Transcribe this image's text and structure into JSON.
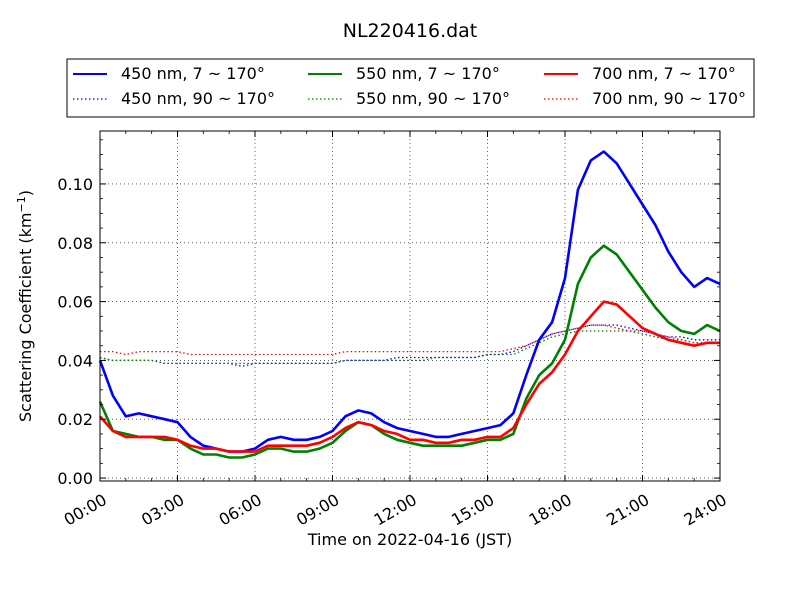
{
  "chart_data": {
    "type": "line",
    "title": "NL220416.dat",
    "xlabel": "Time on 2022-04-16 (JST)",
    "ylabel": "Scattering Coefficient (km",
    "ylabel_sup": "−1",
    "ylabel_end": ")",
    "x_unit": "hours",
    "xlim": [
      0,
      24
    ],
    "ylim": [
      -0.001,
      0.118
    ],
    "x_ticks": [
      0,
      3,
      6,
      9,
      12,
      15,
      18,
      21,
      24
    ],
    "x_tick_labels": [
      "00:00",
      "03:00",
      "06:00",
      "09:00",
      "12:00",
      "15:00",
      "18:00",
      "21:00",
      "24:00"
    ],
    "y_ticks": [
      0.0,
      0.02,
      0.04,
      0.06,
      0.08,
      0.1
    ],
    "y_tick_labels": [
      "0.00",
      "0.02",
      "0.04",
      "0.06",
      "0.08",
      "0.10"
    ],
    "grid": true,
    "legend_position": "top",
    "x": [
      0,
      0.5,
      1,
      1.5,
      2,
      2.5,
      3,
      3.5,
      4,
      4.5,
      5,
      5.5,
      6,
      6.5,
      7,
      7.5,
      8,
      8.5,
      9,
      9.5,
      10,
      10.5,
      11,
      11.5,
      12,
      12.5,
      13,
      13.5,
      14,
      14.5,
      15,
      15.5,
      16,
      16.5,
      17,
      17.5,
      18,
      18.5,
      19,
      19.5,
      20,
      20.5,
      21,
      21.5,
      22,
      22.5,
      23,
      23.5,
      24
    ],
    "series": [
      {
        "name": "450 nm, 7 ~ 170°",
        "color": "#0000ff",
        "style": "solid",
        "values": [
          0.04,
          0.028,
          0.021,
          0.022,
          0.021,
          0.02,
          0.019,
          0.014,
          0.011,
          0.01,
          0.009,
          0.009,
          0.01,
          0.013,
          0.014,
          0.013,
          0.013,
          0.014,
          0.016,
          0.021,
          0.023,
          0.022,
          0.019,
          0.017,
          0.016,
          0.015,
          0.014,
          0.014,
          0.015,
          0.016,
          0.017,
          0.018,
          0.022,
          0.035,
          0.047,
          0.053,
          0.068,
          0.098,
          0.108,
          0.111,
          0.107,
          0.1,
          0.093,
          0.086,
          0.077,
          0.07,
          0.065,
          0.068,
          0.066
        ]
      },
      {
        "name": "450 nm, 90 ~ 170°",
        "color": "#0000ff",
        "style": "dotted",
        "values": [
          0.041,
          0.04,
          0.04,
          0.04,
          0.04,
          0.039,
          0.039,
          0.039,
          0.039,
          0.039,
          0.039,
          0.038,
          0.039,
          0.039,
          0.039,
          0.039,
          0.039,
          0.039,
          0.039,
          0.04,
          0.04,
          0.04,
          0.04,
          0.041,
          0.041,
          0.041,
          0.041,
          0.041,
          0.041,
          0.041,
          0.042,
          0.042,
          0.043,
          0.045,
          0.047,
          0.049,
          0.05,
          0.051,
          0.052,
          0.052,
          0.052,
          0.051,
          0.05,
          0.049,
          0.048,
          0.048,
          0.047,
          0.047,
          0.047
        ]
      },
      {
        "name": "550 nm, 7 ~ 170°",
        "color": "#008000",
        "style": "solid",
        "values": [
          0.026,
          0.016,
          0.015,
          0.014,
          0.014,
          0.013,
          0.013,
          0.01,
          0.008,
          0.008,
          0.007,
          0.007,
          0.008,
          0.01,
          0.01,
          0.009,
          0.009,
          0.01,
          0.012,
          0.016,
          0.019,
          0.018,
          0.015,
          0.013,
          0.012,
          0.011,
          0.011,
          0.011,
          0.011,
          0.012,
          0.013,
          0.013,
          0.015,
          0.027,
          0.035,
          0.039,
          0.047,
          0.066,
          0.075,
          0.079,
          0.076,
          0.07,
          0.064,
          0.058,
          0.053,
          0.05,
          0.049,
          0.052,
          0.05
        ]
      },
      {
        "name": "550 nm, 90 ~ 170°",
        "color": "#008000",
        "style": "dotted",
        "values": [
          0.041,
          0.04,
          0.04,
          0.04,
          0.04,
          0.039,
          0.039,
          0.039,
          0.039,
          0.039,
          0.039,
          0.039,
          0.039,
          0.039,
          0.039,
          0.039,
          0.039,
          0.039,
          0.039,
          0.04,
          0.04,
          0.04,
          0.04,
          0.04,
          0.04,
          0.04,
          0.041,
          0.041,
          0.041,
          0.041,
          0.042,
          0.042,
          0.042,
          0.044,
          0.046,
          0.048,
          0.049,
          0.05,
          0.05,
          0.05,
          0.05,
          0.05,
          0.049,
          0.048,
          0.047,
          0.047,
          0.046,
          0.046,
          0.046
        ]
      },
      {
        "name": "700 nm, 7 ~ 170°",
        "color": "#ff0000",
        "style": "solid",
        "values": [
          0.021,
          0.016,
          0.014,
          0.014,
          0.014,
          0.014,
          0.013,
          0.011,
          0.01,
          0.01,
          0.009,
          0.009,
          0.009,
          0.011,
          0.011,
          0.011,
          0.011,
          0.012,
          0.014,
          0.017,
          0.019,
          0.018,
          0.016,
          0.015,
          0.013,
          0.013,
          0.012,
          0.012,
          0.013,
          0.013,
          0.014,
          0.014,
          0.017,
          0.025,
          0.032,
          0.036,
          0.042,
          0.05,
          0.055,
          0.06,
          0.059,
          0.055,
          0.051,
          0.049,
          0.047,
          0.046,
          0.045,
          0.046,
          0.046
        ]
      },
      {
        "name": "700 nm, 90 ~ 170°",
        "color": "#ff0000",
        "style": "dotted",
        "values": [
          0.043,
          0.043,
          0.042,
          0.043,
          0.043,
          0.043,
          0.043,
          0.042,
          0.042,
          0.042,
          0.042,
          0.042,
          0.042,
          0.042,
          0.042,
          0.042,
          0.042,
          0.042,
          0.042,
          0.043,
          0.043,
          0.043,
          0.043,
          0.043,
          0.043,
          0.043,
          0.043,
          0.043,
          0.043,
          0.043,
          0.043,
          0.043,
          0.044,
          0.045,
          0.047,
          0.049,
          0.05,
          0.051,
          0.052,
          0.052,
          0.051,
          0.05,
          0.05,
          0.049,
          0.048,
          0.047,
          0.046,
          0.046,
          0.046
        ]
      }
    ]
  }
}
